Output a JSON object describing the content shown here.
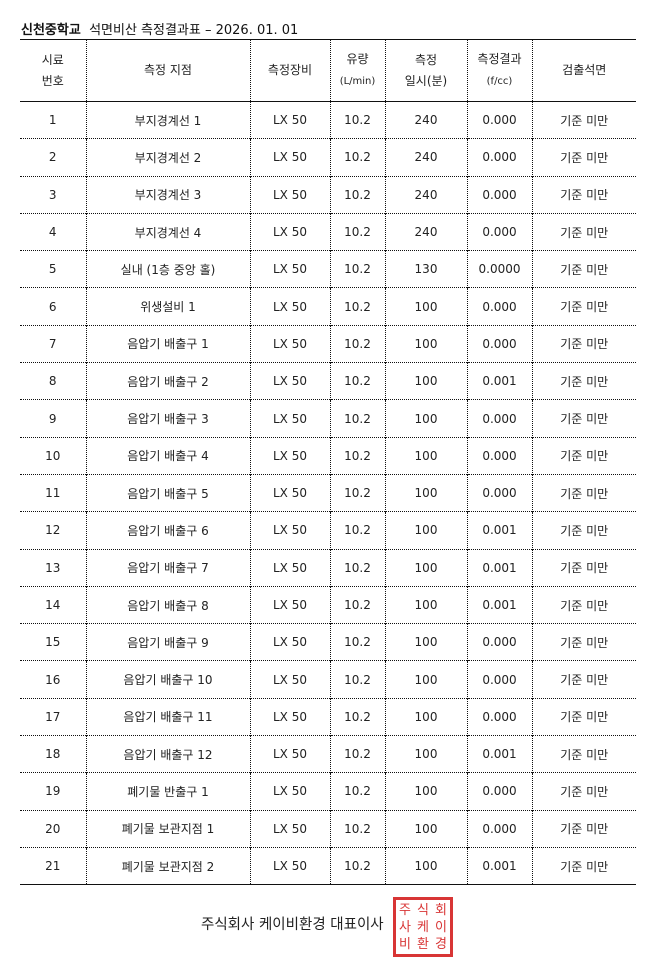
{
  "title": {
    "school": "신천중학교",
    "rest": "석면비산 측정결과표 – 2026. 01. 01"
  },
  "headers": {
    "no": [
      "시료",
      "번호"
    ],
    "location": "측정 지점",
    "equipment": "측정장비",
    "flow": [
      "유량",
      "(L/min)"
    ],
    "time": [
      "측정",
      "일시(분)"
    ],
    "result": [
      "측정결과",
      "(f/cc)"
    ],
    "detected": "검출석면"
  },
  "rows": [
    {
      "no": "1",
      "location": "부지경계선 1",
      "equipment": "LX 50",
      "flow": "10.2",
      "time": "240",
      "result": "0.000",
      "detected": "기준 미만"
    },
    {
      "no": "2",
      "location": "부지경계선 2",
      "equipment": "LX 50",
      "flow": "10.2",
      "time": "240",
      "result": "0.000",
      "detected": "기준 미만"
    },
    {
      "no": "3",
      "location": "부지경계선 3",
      "equipment": "LX 50",
      "flow": "10.2",
      "time": "240",
      "result": "0.000",
      "detected": "기준 미만"
    },
    {
      "no": "4",
      "location": "부지경계선 4",
      "equipment": "LX 50",
      "flow": "10.2",
      "time": "240",
      "result": "0.000",
      "detected": "기준 미만"
    },
    {
      "no": "5",
      "location": "실내 (1층 중앙 홀)",
      "equipment": "LX 50",
      "flow": "10.2",
      "time": "130",
      "result": "0.0000",
      "detected": "기준 미만"
    },
    {
      "no": "6",
      "location": "위생설비 1",
      "equipment": "LX 50",
      "flow": "10.2",
      "time": "100",
      "result": "0.000",
      "detected": "기준 미만"
    },
    {
      "no": "7",
      "location": "음압기 배출구 1",
      "equipment": "LX 50",
      "flow": "10.2",
      "time": "100",
      "result": "0.000",
      "detected": "기준 미만"
    },
    {
      "no": "8",
      "location": "음압기 배출구 2",
      "equipment": "LX 50",
      "flow": "10.2",
      "time": "100",
      "result": "0.001",
      "detected": "기준 미만"
    },
    {
      "no": "9",
      "location": "음압기 배출구 3",
      "equipment": "LX 50",
      "flow": "10.2",
      "time": "100",
      "result": "0.000",
      "detected": "기준 미만"
    },
    {
      "no": "10",
      "location": "음압기 배출구 4",
      "equipment": "LX 50",
      "flow": "10.2",
      "time": "100",
      "result": "0.000",
      "detected": "기준 미만"
    },
    {
      "no": "11",
      "location": "음압기 배출구 5",
      "equipment": "LX 50",
      "flow": "10.2",
      "time": "100",
      "result": "0.000",
      "detected": "기준 미만"
    },
    {
      "no": "12",
      "location": "음압기 배출구 6",
      "equipment": "LX 50",
      "flow": "10.2",
      "time": "100",
      "result": "0.001",
      "detected": "기준 미만"
    },
    {
      "no": "13",
      "location": "음압기 배출구 7",
      "equipment": "LX 50",
      "flow": "10.2",
      "time": "100",
      "result": "0.001",
      "detected": "기준 미만"
    },
    {
      "no": "14",
      "location": "음압기 배출구 8",
      "equipment": "LX 50",
      "flow": "10.2",
      "time": "100",
      "result": "0.001",
      "detected": "기준 미만"
    },
    {
      "no": "15",
      "location": "음압기 배출구 9",
      "equipment": "LX 50",
      "flow": "10.2",
      "time": "100",
      "result": "0.000",
      "detected": "기준 미만"
    },
    {
      "no": "16",
      "location": "음압기 배출구 10",
      "equipment": "LX 50",
      "flow": "10.2",
      "time": "100",
      "result": "0.000",
      "detected": "기준 미만"
    },
    {
      "no": "17",
      "location": "음압기 배출구 11",
      "equipment": "LX 50",
      "flow": "10.2",
      "time": "100",
      "result": "0.000",
      "detected": "기준 미만"
    },
    {
      "no": "18",
      "location": "음압기 배출구 12",
      "equipment": "LX 50",
      "flow": "10.2",
      "time": "100",
      "result": "0.001",
      "detected": "기준 미만"
    },
    {
      "no": "19",
      "location": "폐기물 반출구 1",
      "equipment": "LX 50",
      "flow": "10.2",
      "time": "100",
      "result": "0.000",
      "detected": "기준 미만"
    },
    {
      "no": "20",
      "location": "폐기물 보관지점 1",
      "equipment": "LX 50",
      "flow": "10.2",
      "time": "100",
      "result": "0.000",
      "detected": "기준 미만"
    },
    {
      "no": "21",
      "location": "폐기물 보관지점 2",
      "equipment": "LX 50",
      "flow": "10.2",
      "time": "100",
      "result": "0.001",
      "detected": "기준 미만"
    }
  ],
  "footer": {
    "signature": "주식회사 케이비환경 대표이사",
    "seal_text": "주식회사케이비환경",
    "seal_color": "#d42020"
  }
}
